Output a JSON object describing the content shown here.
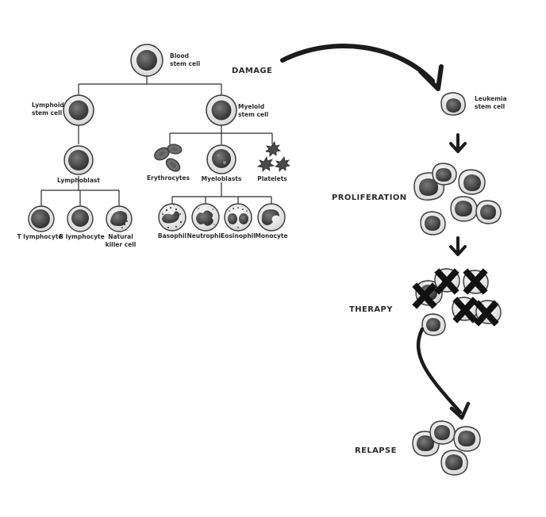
{
  "tree": {
    "blood_stem_cell": [
      "Blood",
      "stem cell"
    ],
    "lymphoid_stem_cell": [
      "Lymphoid",
      "stem cell"
    ],
    "myeloid_stem_cell": [
      "Myeloid",
      "stem cell"
    ],
    "lymphoblast": "Lymphoblast",
    "erythrocytes": "Erythrocytes",
    "myeloblasts": "Myeloblasts",
    "platelets": "Platelets",
    "t_lymphocyte": "T lymphocyte",
    "b_lymphocyte": "B lymphocyte",
    "natural_killer_cell": [
      "Natural",
      "killer cell"
    ],
    "basophil": "Basophil",
    "neutrophil": "Neutrophil",
    "eosinophil": "Eosinophil",
    "monocyte": "Monocyte"
  },
  "stages": {
    "damage": "DAMAGE",
    "leukemia_stem_cell": [
      "Leukemia",
      "stem cell"
    ],
    "proliferation": "PROLIFERATION",
    "therapy": "THERAPY",
    "relapse": "RELAPSE"
  },
  "colors": {
    "line": "#2b2b2b",
    "cell_outline": "#3a3a3a",
    "cell_fill": "#e4e4e4",
    "nucleus": "#4a4a4a",
    "leukemia_nucleus": "#3c3c3c",
    "cross": "#111111"
  }
}
